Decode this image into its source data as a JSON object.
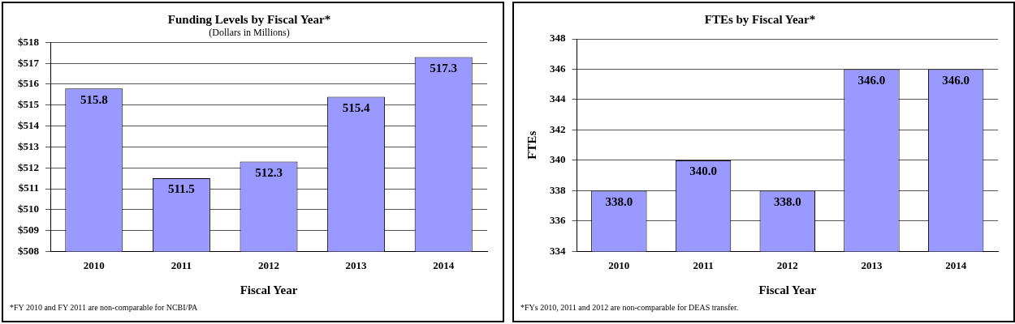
{
  "chart_data": [
    {
      "type": "bar",
      "title": "Funding Levels by Fiscal Year*",
      "subtitle": "(Dollars in Millions)",
      "xlabel": "Fiscal Year",
      "categories": [
        "2010",
        "2011",
        "2012",
        "2013",
        "2014"
      ],
      "values": [
        515.8,
        511.5,
        512.3,
        515.4,
        517.3
      ],
      "color": "#9999ff",
      "data_labels": true,
      "ylim": [
        508,
        518
      ],
      "yticks": [
        {
          "value": 508,
          "label": "$508"
        },
        {
          "value": 509,
          "label": "$509"
        },
        {
          "value": 510,
          "label": "$510"
        },
        {
          "value": 511,
          "label": "$511"
        },
        {
          "value": 512,
          "label": "$512"
        },
        {
          "value": 513,
          "label": "$513"
        },
        {
          "value": 514,
          "label": "$514"
        },
        {
          "value": 515,
          "label": "$515"
        },
        {
          "value": 516,
          "label": "$516"
        },
        {
          "value": 517,
          "label": "$517"
        },
        {
          "value": 518,
          "label": "$518"
        }
      ],
      "grid": "y",
      "legend": false,
      "annotations": [
        "*FY 2010 and FY 2011 are non-comparable for NCBI/PA"
      ]
    },
    {
      "type": "bar",
      "title": "FTEs by Fiscal Year*",
      "xlabel": "Fiscal Year",
      "ylabel": "FTEs",
      "categories": [
        "2010",
        "2011",
        "2012",
        "2013",
        "2014"
      ],
      "values": [
        338,
        340,
        338,
        346,
        346
      ],
      "value_labels": [
        "338.0",
        "340.0",
        "338.0",
        "346.0",
        "346.0"
      ],
      "color": "#9999ff",
      "ylim": [
        334,
        348
      ],
      "yticks": [
        334,
        336,
        338,
        340,
        342,
        344,
        346,
        348
      ],
      "grid": "y",
      "legend": false,
      "annotations": [
        "*FYs 2010, 2011 and 2012 are non-comparable for DEAS transfer."
      ]
    }
  ]
}
